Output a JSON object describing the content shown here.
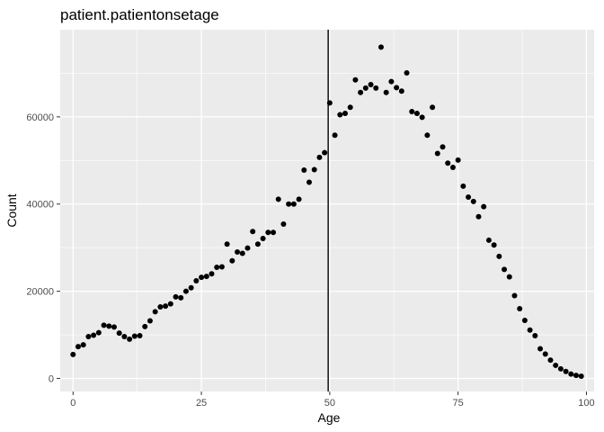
{
  "chart_data": {
    "type": "scatter",
    "title": "patient.patientonsetage",
    "xlabel": "Age",
    "ylabel": "Count",
    "xlim": [
      -2.5,
      101.5
    ],
    "ylim": [
      -3000,
      80000
    ],
    "x_ticks": [
      0,
      25,
      50,
      75,
      100
    ],
    "x_tick_labels": [
      "0",
      "25",
      "50",
      "75",
      "100"
    ],
    "y_ticks": [
      0,
      20000,
      40000,
      60000
    ],
    "y_tick_labels": [
      "0",
      "20000",
      "40000",
      "60000"
    ],
    "grid": true,
    "legend": "none",
    "vertical_line_x": 49.7,
    "point_color": "#000000",
    "panel_color": "#ebebeb",
    "grid_color": "#ffffff",
    "x": [
      0,
      1,
      2,
      3,
      4,
      5,
      6,
      7,
      8,
      9,
      10,
      11,
      12,
      13,
      14,
      15,
      16,
      17,
      18,
      19,
      20,
      21,
      22,
      23,
      24,
      25,
      26,
      27,
      28,
      29,
      30,
      31,
      32,
      33,
      34,
      35,
      36,
      37,
      38,
      39,
      40,
      41,
      42,
      43,
      44,
      45,
      46,
      47,
      48,
      49,
      50,
      51,
      52,
      53,
      54,
      55,
      56,
      57,
      58,
      59,
      60,
      61,
      62,
      63,
      64,
      65,
      66,
      67,
      68,
      69,
      70,
      71,
      72,
      73,
      74,
      75,
      76,
      77,
      78,
      79,
      80,
      81,
      82,
      83,
      84,
      85,
      86,
      87,
      88,
      89,
      90,
      91,
      92,
      93,
      94,
      95,
      96,
      97,
      98,
      99
    ],
    "y": [
      5500,
      7300,
      7700,
      9600,
      9900,
      10500,
      12200,
      12000,
      11800,
      10400,
      9600,
      9000,
      9700,
      9800,
      11900,
      13200,
      15300,
      16400,
      16600,
      17100,
      18700,
      18500,
      20000,
      20800,
      22400,
      23200,
      23400,
      24000,
      25500,
      25600,
      30800,
      27000,
      29000,
      28700,
      29900,
      33700,
      30800,
      32100,
      33500,
      33500,
      41100,
      35400,
      40000,
      40000,
      41100,
      47800,
      45000,
      47900,
      50700,
      51800,
      63200,
      55800,
      60500,
      60800,
      62200,
      68500,
      65600,
      66600,
      67400,
      66600,
      76000,
      65600,
      68100,
      66700,
      65900,
      70100,
      61200,
      60800,
      59900,
      55800,
      62200,
      51600,
      53100,
      49400,
      48400,
      50100,
      44100,
      41600,
      40600,
      37100,
      39400,
      31700,
      30600,
      28000,
      25000,
      23300,
      19000,
      16000,
      13300,
      11100,
      9800,
      6800,
      5600,
      4200,
      3000,
      2200,
      1600,
      1000,
      700,
      500
    ]
  }
}
